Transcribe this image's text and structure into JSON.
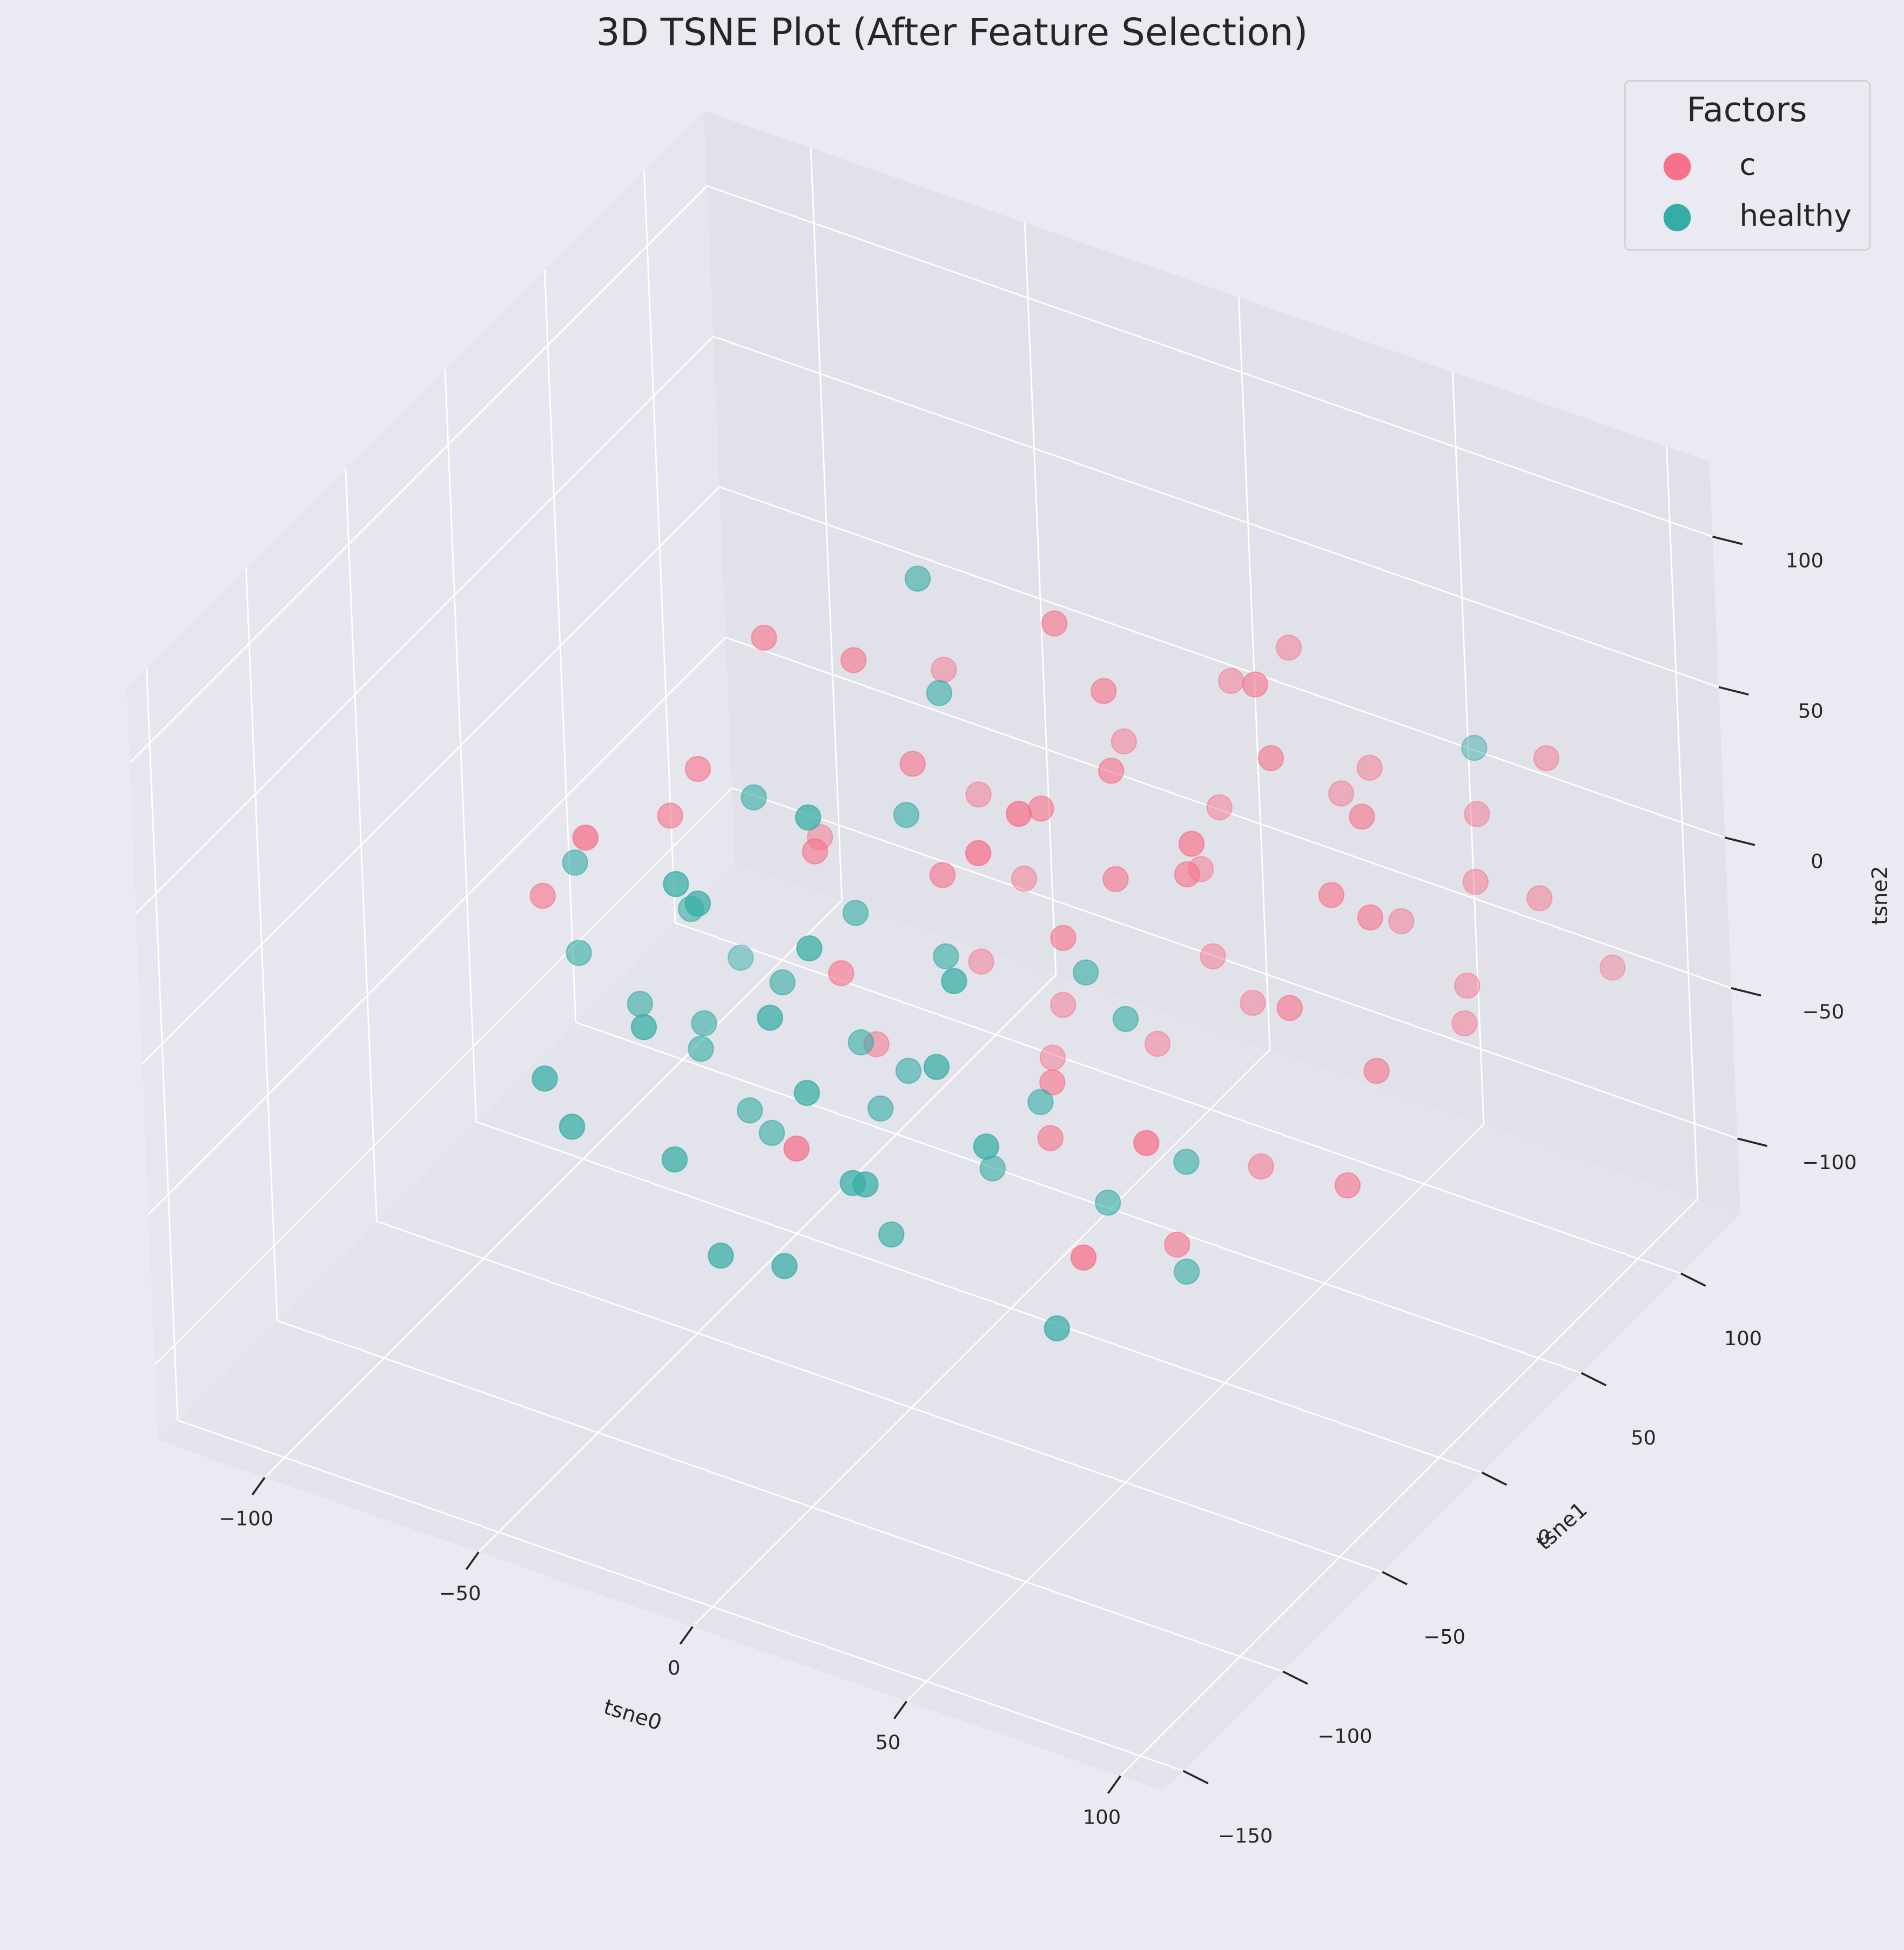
{
  "chart_data": {
    "type": "scatter3d",
    "title": "3D TSNE Plot (After Feature Selection)",
    "xlabel": "tsne0",
    "ylabel": "tsne1",
    "zlabel": "tsne2",
    "xlim": [
      -125,
      110
    ],
    "ylim": [
      -160,
      130
    ],
    "zlim": [
      -125,
      125
    ],
    "xticks": [
      {
        "value": -100,
        "label": "−100"
      },
      {
        "value": -50,
        "label": "−50"
      },
      0,
      50,
      100
    ],
    "yticks": [
      {
        "value": -150,
        "label": "−150"
      },
      {
        "value": -100,
        "label": "−100"
      },
      {
        "value": -50,
        "label": "−50"
      },
      0,
      50,
      100
    ],
    "zticks": [
      {
        "value": -100,
        "label": "−100"
      },
      {
        "value": -50,
        "label": "−50"
      },
      0,
      50,
      100
    ],
    "grid": true,
    "legend_title": "Factors",
    "legend_loc": "upper right",
    "series": [
      {
        "name": "c",
        "color": "#f77189",
        "x": [
          -52,
          -31,
          -49,
          17,
          28,
          19,
          64,
          33,
          -69,
          -76,
          -57,
          -107,
          -18,
          -80,
          -42,
          -42,
          46,
          12,
          36,
          -12,
          -32,
          29,
          -7,
          29,
          67,
          15,
          67,
          10,
          46,
          44,
          51,
          88,
          76,
          93,
          80,
          89,
          57,
          75,
          90,
          87,
          72,
          71,
          -37,
          -43,
          16,
          12,
          21,
          69,
          -24,
          -2,
          -49,
          -27,
          12,
          89,
          -10,
          11,
          73,
          41,
          81,
          40,
          57
        ],
        "y": [
          0,
          0,
          80,
          0,
          0,
          80,
          0,
          80,
          0,
          0,
          -80,
          0,
          0,
          80,
          0,
          80,
          -80,
          0,
          -80,
          0,
          80,
          0,
          80,
          0,
          0,
          80,
          -40,
          80,
          0,
          80,
          80,
          0,
          80,
          80,
          0,
          0,
          80,
          80,
          80,
          120,
          80,
          80,
          0,
          80,
          0,
          80,
          80,
          0,
          80,
          80,
          40,
          80,
          0,
          0,
          -80,
          0,
          -80,
          40,
          0,
          0,
          -80
        ],
        "z": [
          72,
          75,
          10,
          111,
          94,
          40,
          114,
          58,
          20,
          1,
          56,
          -41,
          47,
          -61,
          6,
          -28,
          115,
          47,
          97,
          13,
          -51,
          68,
          7,
          32,
          91,
          -4,
          89,
          -27,
          42,
          15,
          27,
          82,
          24,
          51,
          52,
          49,
          -21,
          1,
          3,
          -48,
          -35,
          -48,
          -32,
          -84,
          6,
          -55,
          -66,
          9,
          -89,
          -91,
          -88,
          -108,
          -44,
          -2,
          -24,
          -63,
          19,
          -84,
          -44,
          -84,
          -27
        ]
      },
      {
        "name": "healthy",
        "color": "#36ada4",
        "x": [
          -15,
          -11,
          -56,
          -4,
          -20,
          -99,
          -36,
          -31,
          -72,
          -33,
          -99,
          -100,
          -5,
          -12,
          29,
          -51,
          21,
          -85,
          -45,
          -70,
          -15,
          -71,
          -33,
          -22,
          24,
          30,
          -69,
          -60,
          -7,
          -29,
          9,
          -63,
          -55,
          -39,
          35,
          -3,
          3,
          6,
          43,
          24,
          -8,
          -29,
          -14,
          42,
          50,
          76
        ],
        "y": [
          0,
          0,
          0,
          -80,
          0,
          0,
          -80,
          -80,
          0,
          0,
          0,
          80,
          -80,
          0,
          -80,
          0,
          0,
          0,
          -80,
          0,
          -80,
          0,
          0,
          0,
          -80,
          0,
          -80,
          0,
          -80,
          0,
          0,
          -80,
          0,
          -80,
          -80,
          0,
          -80,
          -80,
          0,
          0,
          -40,
          -80,
          -80,
          0,
          -80,
          80
        ],
        "z": [
          110,
          74,
          17,
          89,
          29,
          -26,
          51,
          47,
          -28,
          -10,
          -56,
          -111,
          45,
          -14,
          51,
          -42,
          -3,
          -66,
          -1,
          -65,
          17,
          -74,
          -53,
          -57,
          20,
          -14,
          -30,
          -89,
          -4,
          -73,
          -52,
          -43,
          -94,
          -42,
          -1,
          -80,
          -29,
          -28,
          -55,
          -78,
          -78,
          -69,
          -65,
          -92,
          -54,
          46
        ]
      }
    ]
  }
}
